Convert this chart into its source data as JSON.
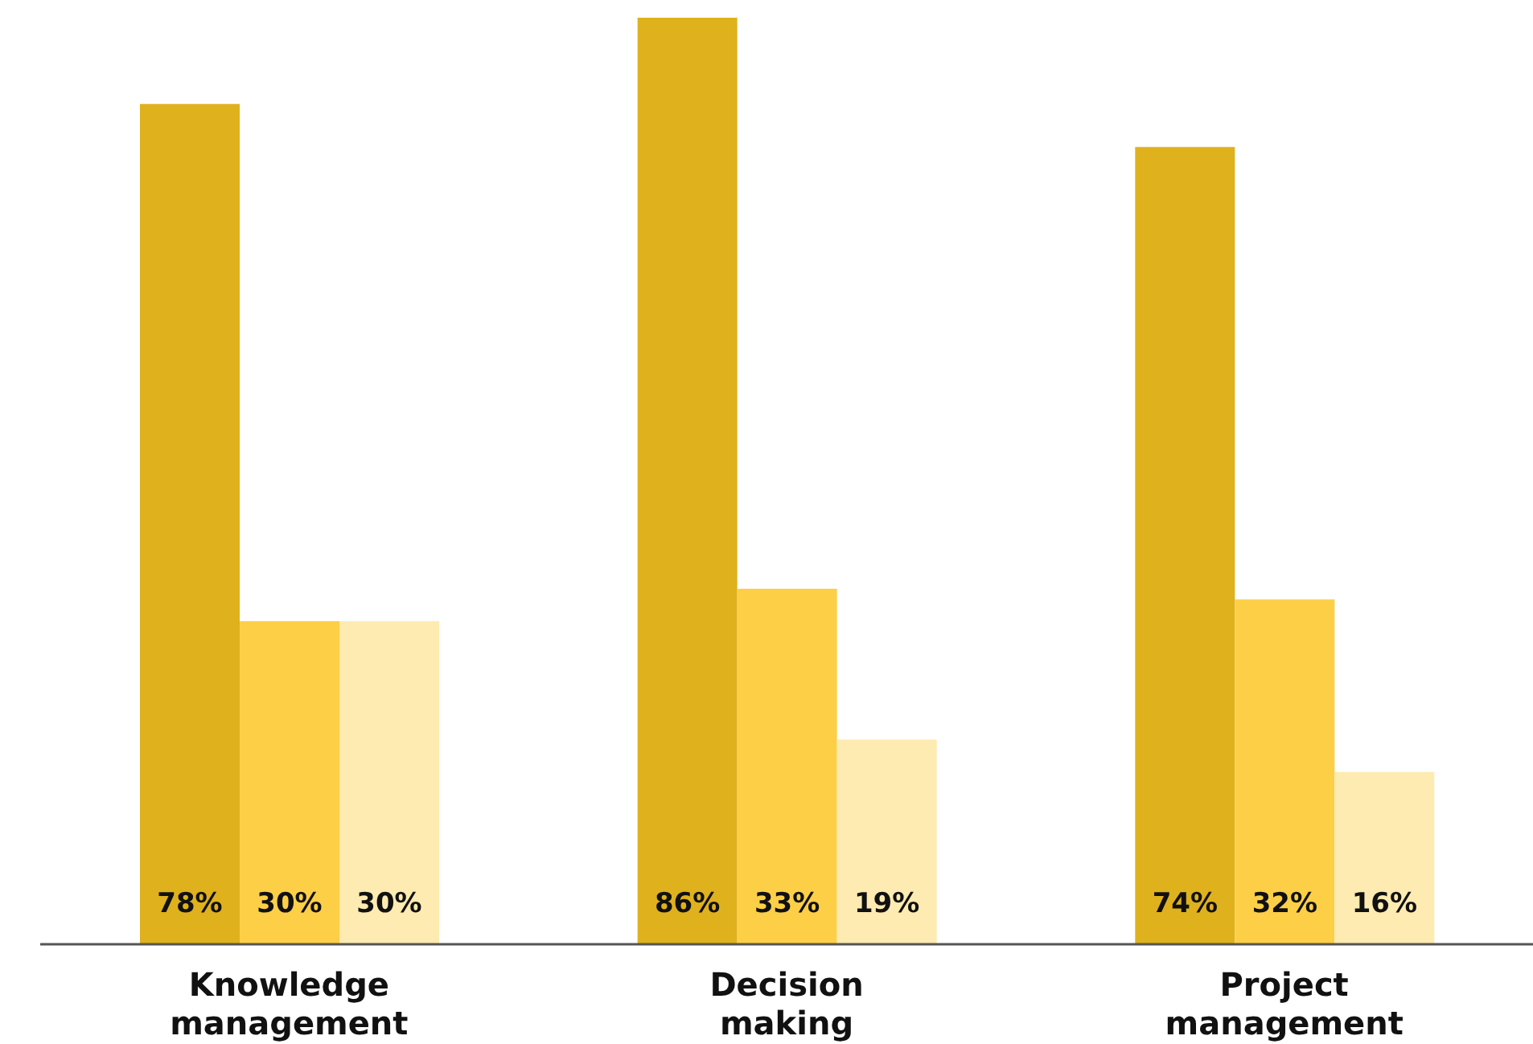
{
  "chart_data": {
    "type": "bar",
    "categories": [
      "Knowledge management",
      "Decision making",
      "Project management"
    ],
    "series": [
      {
        "color": "#dfb11d",
        "values": [
          78,
          86,
          74
        ],
        "value_labels": [
          "78%",
          "86%",
          "74%"
        ]
      },
      {
        "color": "#fccf47",
        "values": [
          30,
          33,
          32
        ],
        "value_labels": [
          "30%",
          "33%",
          "32%"
        ]
      },
      {
        "color": "#feebb1",
        "values": [
          30,
          19,
          16
        ],
        "value_labels": [
          "30%",
          "19%",
          "16%"
        ]
      }
    ]
  }
}
